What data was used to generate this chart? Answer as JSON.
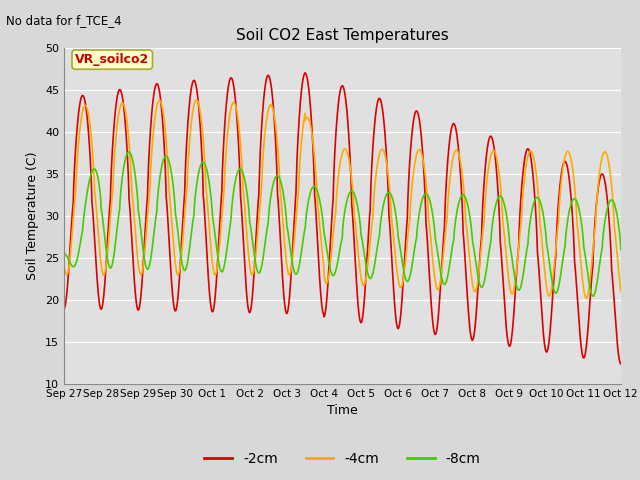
{
  "title": "Soil CO2 East Temperatures",
  "subtitle": "No data for f_TCE_4",
  "xlabel": "Time",
  "ylabel": "Soil Temperature (C)",
  "ylim": [
    10,
    50
  ],
  "legend_label": "VR_soilco2",
  "series_labels": [
    "-2cm",
    "-4cm",
    "-8cm"
  ],
  "series_colors": [
    "#dd0000",
    "#ffaa00",
    "#44cc00"
  ],
  "fig_facecolor": "#d8d8d8",
  "plot_facecolor": "#e0e0e0",
  "xtick_labels": [
    "Sep 27",
    "Sep 28",
    "Sep 29",
    "Sep 30",
    "Oct 1",
    "Oct 2",
    "Oct 3",
    "Oct 4",
    "Oct 5",
    "Oct 6",
    "Oct 7",
    "Oct 8",
    "Oct 9",
    "Oct 10",
    "Oct 11",
    "Oct 12"
  ],
  "ytick_labels": [
    10,
    15,
    20,
    25,
    30,
    35,
    40,
    45,
    50
  ]
}
